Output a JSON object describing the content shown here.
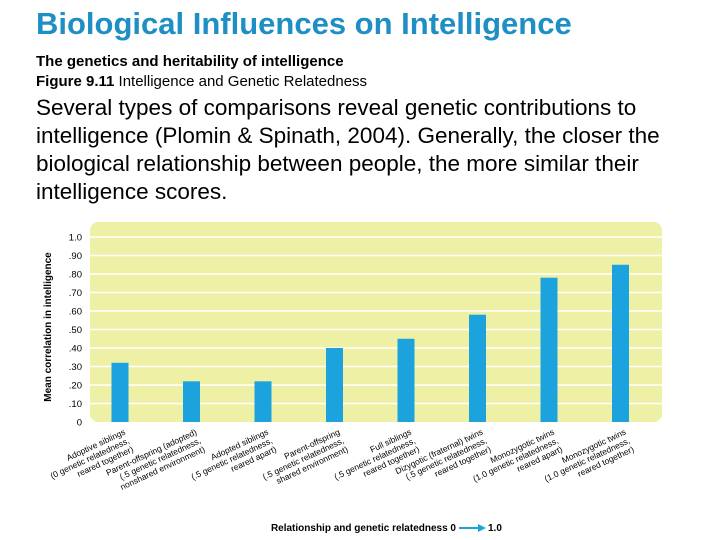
{
  "slide": {
    "title": "Biological Influences on Intelligence",
    "subtitle": "The genetics and heritability of intelligence",
    "figure_label": "Figure 9.11",
    "figure_caption": " Intelligence and Genetic Relatedness",
    "body": "Several types of comparisons reveal genetic contributions to intelligence (Plomin & Spinath, 2004). Generally, the closer the biological relationship between people, the more similar their intelligence scores."
  },
  "colors": {
    "title": "#1e8fc4",
    "bar": "#1ca3dd",
    "plot_bg": "#eef0a6",
    "grid": "#ffffff"
  },
  "chart_data": {
    "type": "bar",
    "title": "",
    "ylabel": "Mean correlation in intelligence",
    "xlabel_prefix": "Relationship and genetic relatedness 0",
    "xlabel_suffix": "1.0",
    "ylim": [
      0,
      1.0
    ],
    "yticks": [
      "0",
      ".10",
      ".20",
      ".30",
      ".40",
      ".50",
      ".60",
      ".70",
      ".80",
      ".90",
      "1.0"
    ],
    "grid": true,
    "categories": [
      [
        "Adoptive siblings",
        "(0 genetic relatedness,",
        "reared together)"
      ],
      [
        "Parent-offspring (adopted)",
        "(.5 genetic relatedness,",
        "nonshared environment)"
      ],
      [
        "Adopted siblings",
        "(.5 genetic relatedness,",
        "reared apart)"
      ],
      [
        "Parent-offspring",
        "(.5 genetic relatedness,",
        "shared environment)"
      ],
      [
        "Full siblings",
        "(.5 genetic relatedness,",
        "reared together)"
      ],
      [
        "Dizygotic (fraternal) twins",
        "(.5 genetic relatedness,",
        "reared together)"
      ],
      [
        "Monozygotic twins",
        "(1.0 genetic relatedness,",
        "reared apart)"
      ],
      [
        "Monozygotic twins",
        "(1.0 genetic relatedness,",
        "reared together)"
      ]
    ],
    "values": [
      0.32,
      0.22,
      0.22,
      0.4,
      0.45,
      0.58,
      0.78,
      0.85
    ]
  }
}
